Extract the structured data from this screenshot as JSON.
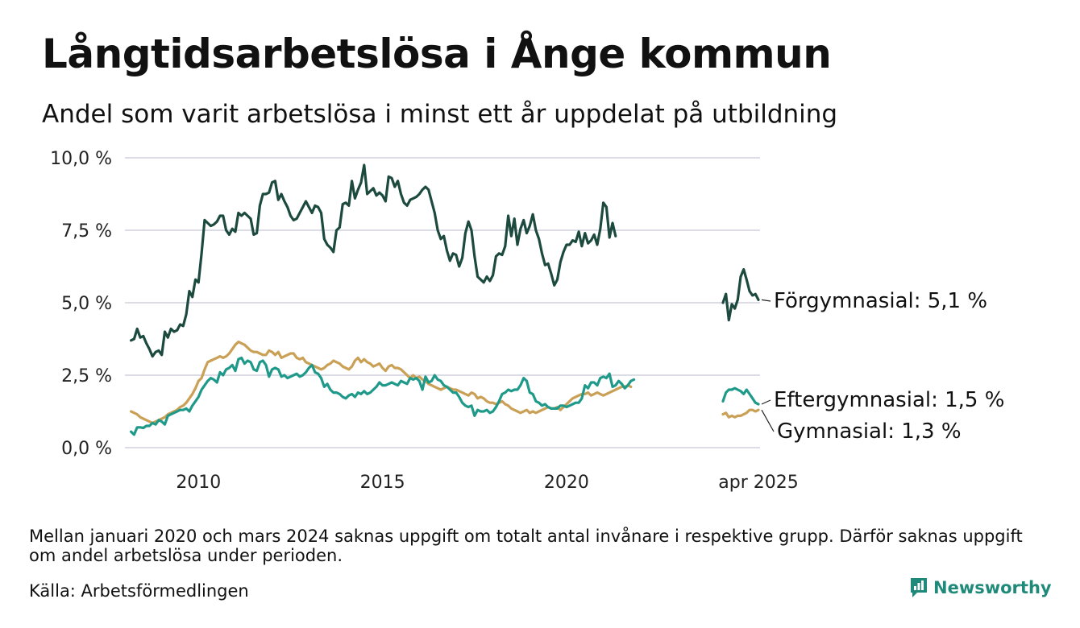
{
  "title": "Långtidsarbetslösa i Ånge kommun",
  "subtitle": "Andel som varit arbetslösa i minst ett år uppdelat på utbildning",
  "footnote": "Mellan januari 2020 och mars 2024 saknas uppgift om totalt antal invånare i respektive grupp. Därför saknas uppgift om andel arbetslösa under perioden.",
  "source": "Källa: Arbetsförmedlingen",
  "logo": {
    "text": "Newsworthy",
    "icon": "newsworthy-logo-icon",
    "color": "#1f8a7a"
  },
  "chart_data": {
    "type": "line",
    "ylim": [
      0,
      10
    ],
    "y_ticks": [
      {
        "value": 0,
        "label": "0,0 %"
      },
      {
        "value": 2.5,
        "label": "2,5 %"
      },
      {
        "value": 5,
        "label": "5,0 %"
      },
      {
        "value": 7.5,
        "label": "7,5 %"
      },
      {
        "value": 10,
        "label": "10,0 %"
      }
    ],
    "x_ticks": [
      "2010",
      "2015",
      "2020"
    ],
    "right_panel_tick": "apr 2025",
    "grid": true,
    "series": [
      {
        "name": "Förgymnasial",
        "end_label": "Förgymnasial: 5,1 %",
        "color": "#1d4a3f",
        "start": "2008-03",
        "values": [
          3.7,
          3.75,
          4.1,
          3.8,
          3.85,
          3.6,
          3.4,
          3.15,
          3.3,
          3.35,
          3.2,
          4.0,
          3.8,
          4.1,
          4.0,
          4.05,
          4.25,
          4.2,
          4.6,
          5.4,
          5.2,
          5.8,
          5.7,
          6.7,
          7.85,
          7.75,
          7.65,
          7.7,
          7.8,
          8.0,
          8.0,
          7.5,
          7.35,
          7.55,
          7.45,
          8.1,
          8.0,
          8.1,
          8.0,
          7.9,
          7.35,
          7.4,
          8.35,
          8.75,
          8.75,
          8.8,
          9.15,
          9.2,
          8.55,
          8.75,
          8.5,
          8.3,
          8.0,
          7.85,
          7.9,
          8.1,
          8.3,
          8.5,
          8.3,
          8.1,
          8.35,
          8.3,
          8.1,
          7.2,
          7.0,
          6.9,
          6.75,
          7.5,
          7.6,
          8.4,
          8.45,
          8.35,
          9.2,
          8.6,
          8.9,
          9.15,
          9.75,
          8.75,
          8.85,
          8.95,
          8.7,
          8.8,
          8.7,
          8.5,
          9.35,
          9.3,
          9.0,
          9.2,
          8.75,
          8.45,
          8.35,
          8.55,
          8.6,
          8.65,
          8.75,
          8.9,
          9.0,
          8.9,
          8.5,
          8.1,
          7.5,
          7.2,
          7.3,
          6.8,
          6.45,
          6.7,
          6.65,
          6.25,
          6.55,
          7.4,
          7.8,
          7.5,
          6.6,
          5.9,
          5.8,
          5.7,
          5.9,
          5.75,
          5.95,
          6.6,
          6.7,
          6.65,
          6.95,
          8.0,
          7.3,
          7.9,
          7.0,
          7.55,
          7.85,
          7.4,
          7.65,
          8.05,
          7.5,
          7.2,
          6.7,
          6.3,
          6.35,
          6.0,
          5.6,
          5.8,
          6.4,
          6.75,
          7.0,
          7.0,
          7.15,
          7.1,
          7.45,
          6.95,
          7.4,
          7.05,
          7.15,
          7.35,
          7.0,
          7.55,
          8.45,
          8.3,
          7.25,
          7.75,
          7.3
        ],
        "latest_start": "2024-04",
        "latest_values": [
          5.0,
          5.3,
          4.4,
          4.95,
          4.8,
          5.1,
          5.9,
          6.15,
          5.8,
          5.4,
          5.25,
          5.3,
          5.1
        ]
      },
      {
        "name": "Eftergymnasial",
        "end_label": "Eftergymnasial: 1,5 %",
        "color": "#1f9a8a",
        "start": "2008-03",
        "values": [
          0.55,
          0.45,
          0.7,
          0.7,
          0.68,
          0.75,
          0.75,
          0.85,
          0.8,
          0.95,
          0.9,
          0.8,
          1.1,
          1.15,
          1.2,
          1.25,
          1.3,
          1.3,
          1.35,
          1.25,
          1.45,
          1.6,
          1.75,
          2.0,
          2.15,
          2.3,
          2.4,
          2.35,
          2.25,
          2.6,
          2.5,
          2.7,
          2.75,
          2.85,
          2.65,
          3.05,
          3.1,
          2.9,
          3.0,
          2.95,
          2.7,
          2.65,
          2.95,
          3.0,
          2.85,
          2.45,
          2.7,
          2.75,
          2.7,
          2.45,
          2.5,
          2.4,
          2.45,
          2.5,
          2.55,
          2.45,
          2.5,
          2.6,
          2.75,
          2.85,
          2.6,
          2.55,
          2.4,
          2.1,
          2.2,
          2.0,
          1.9,
          1.9,
          1.85,
          1.75,
          1.7,
          1.8,
          1.85,
          1.75,
          1.9,
          1.85,
          1.95,
          1.85,
          1.9,
          2.0,
          2.1,
          2.25,
          2.15,
          2.15,
          2.2,
          2.25,
          2.2,
          2.15,
          2.3,
          2.25,
          2.2,
          2.4,
          2.35,
          2.4,
          2.3,
          2.0,
          2.45,
          2.25,
          2.3,
          2.5,
          2.35,
          2.3,
          2.15,
          2.1,
          2.0,
          1.9,
          1.9,
          1.75,
          1.55,
          1.45,
          1.4,
          1.45,
          1.1,
          1.3,
          1.25,
          1.25,
          1.3,
          1.2,
          1.25,
          1.4,
          1.6,
          1.85,
          1.9,
          2.0,
          1.95,
          2.0,
          2.0,
          2.15,
          2.4,
          2.3,
          1.9,
          1.85,
          1.6,
          1.55,
          1.45,
          1.5,
          1.4,
          1.35,
          1.35,
          1.35,
          1.45,
          1.45,
          1.4,
          1.45,
          1.5,
          1.55,
          1.55,
          1.7,
          2.15,
          2.05,
          2.25,
          2.25,
          2.15,
          2.4,
          2.45,
          2.4,
          2.55,
          2.1,
          2.15,
          2.3,
          2.2,
          2.05,
          2.15,
          2.3,
          2.35
        ],
        "latest_start": "2024-04",
        "latest_values": [
          1.6,
          1.9,
          2.0,
          2.0,
          2.05,
          2.0,
          1.95,
          1.85,
          2.0,
          1.85,
          1.7,
          1.55,
          1.5
        ]
      },
      {
        "name": "Gymnasial",
        "end_label": "Gymnasial: 1,3 %",
        "color": "#c9a055",
        "start": "2008-03",
        "values": [
          1.25,
          1.2,
          1.15,
          1.05,
          1.0,
          0.95,
          0.9,
          0.85,
          0.9,
          0.95,
          1.0,
          1.05,
          1.15,
          1.2,
          1.25,
          1.3,
          1.4,
          1.45,
          1.55,
          1.7,
          1.85,
          2.05,
          2.3,
          2.4,
          2.7,
          2.95,
          3.0,
          3.05,
          3.1,
          3.15,
          3.1,
          3.15,
          3.25,
          3.4,
          3.55,
          3.65,
          3.6,
          3.55,
          3.45,
          3.35,
          3.3,
          3.3,
          3.25,
          3.2,
          3.2,
          3.35,
          3.3,
          3.2,
          3.3,
          3.1,
          3.15,
          3.2,
          3.25,
          3.25,
          3.1,
          3.05,
          3.1,
          2.95,
          2.9,
          2.85,
          2.8,
          2.75,
          2.7,
          2.75,
          2.85,
          2.9,
          3.0,
          2.95,
          2.9,
          2.8,
          2.75,
          2.7,
          2.8,
          3.0,
          3.1,
          2.95,
          3.05,
          2.95,
          2.9,
          2.8,
          2.85,
          2.9,
          2.75,
          2.65,
          2.8,
          2.85,
          2.75,
          2.75,
          2.7,
          2.6,
          2.5,
          2.4,
          2.5,
          2.4,
          2.45,
          2.35,
          2.3,
          2.2,
          2.15,
          2.1,
          2.05,
          2.0,
          2.05,
          2.1,
          2.05,
          2.0,
          2.0,
          1.95,
          1.9,
          1.85,
          1.8,
          1.9,
          1.85,
          1.7,
          1.75,
          1.7,
          1.6,
          1.55,
          1.55,
          1.5,
          1.55,
          1.6,
          1.5,
          1.45,
          1.35,
          1.3,
          1.25,
          1.2,
          1.25,
          1.3,
          1.2,
          1.25,
          1.2,
          1.25,
          1.3,
          1.35,
          1.4,
          1.35,
          1.35,
          1.4,
          1.3,
          1.4,
          1.5,
          1.6,
          1.7,
          1.75,
          1.8,
          1.85,
          1.85,
          1.9,
          1.8,
          1.85,
          1.9,
          1.85,
          1.8,
          1.85,
          1.9,
          1.95,
          2.0,
          2.05,
          2.1,
          2.1,
          2.15,
          2.1
        ],
        "latest_start": "2024-04",
        "latest_values": [
          1.15,
          1.2,
          1.05,
          1.1,
          1.05,
          1.1,
          1.1,
          1.15,
          1.2,
          1.3,
          1.3,
          1.25,
          1.3
        ]
      }
    ]
  }
}
